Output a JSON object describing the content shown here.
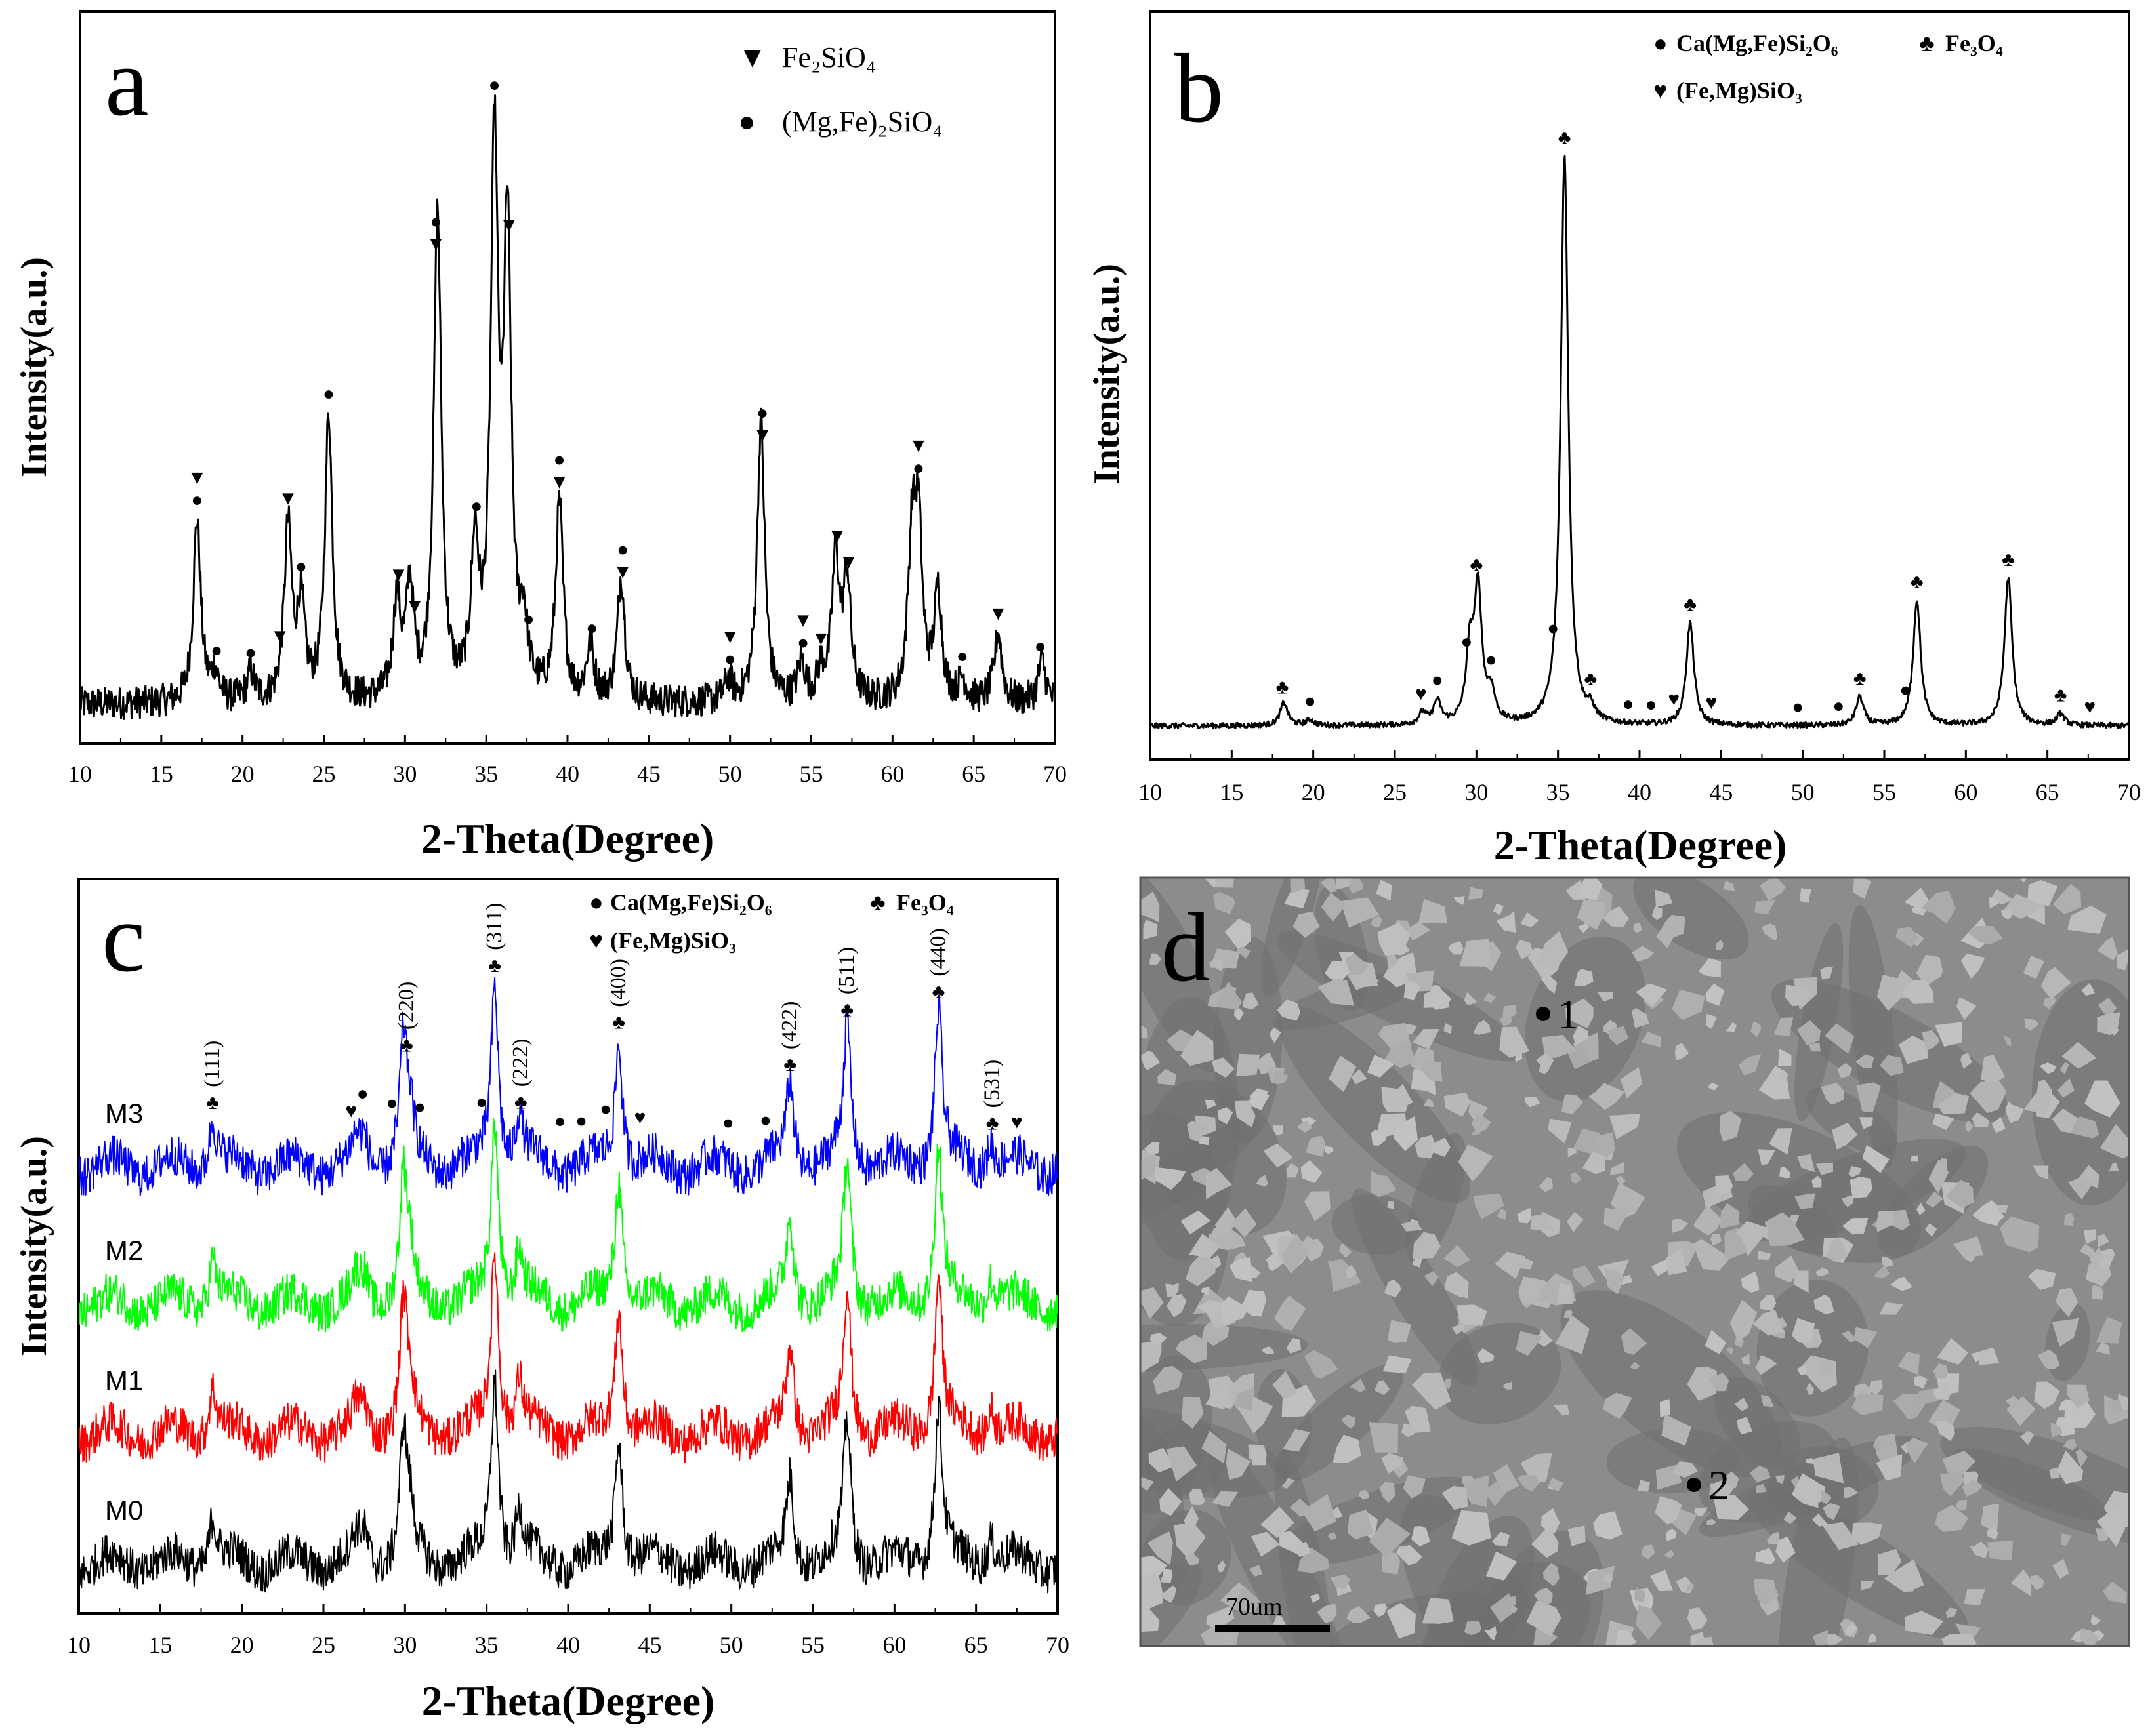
{
  "colors": {
    "black": "#000000",
    "blue": "#0000ff",
    "green": "#00ff00",
    "red": "#ff0000",
    "sem_bg": "#8c8c8c"
  },
  "chart_data": [
    {
      "panel": "a",
      "type": "line",
      "xlabel": "2-Theta(Degree)",
      "ylabel": "Intensity(a.u.)",
      "xlim": [
        10,
        70
      ],
      "xticks": [
        "10",
        "15",
        "20",
        "25",
        "30",
        "35",
        "40",
        "45",
        "50",
        "55",
        "60",
        "65",
        "70"
      ],
      "legend": [
        {
          "symbol": "▼",
          "formula": "Fe₂SiO₄"
        },
        {
          "symbol": "●",
          "formula": "(Mg,Fe)₂SiO₄"
        }
      ],
      "background": 0.06,
      "peaks": [
        [
          17.2,
          0.34
        ],
        [
          18.3,
          0.05
        ],
        [
          20.5,
          0.05
        ],
        [
          22.8,
          0.32
        ],
        [
          23.6,
          0.17
        ],
        [
          25.3,
          0.53
        ],
        [
          29.5,
          0.18
        ],
        [
          30.3,
          0.2
        ],
        [
          32.0,
          0.9
        ],
        [
          34.3,
          0.27
        ],
        [
          35.5,
          1.0
        ],
        [
          36.3,
          0.84
        ],
        [
          37.3,
          0.12
        ],
        [
          39.5,
          0.36
        ],
        [
          41.4,
          0.1
        ],
        [
          43.3,
          0.23
        ],
        [
          49.9,
          0.04
        ],
        [
          51.9,
          0.52
        ],
        [
          54.4,
          0.07
        ],
        [
          55.6,
          0.05
        ],
        [
          56.5,
          0.26
        ],
        [
          57.2,
          0.22
        ],
        [
          61.2,
          0.28
        ],
        [
          61.6,
          0.3
        ],
        [
          62.8,
          0.2
        ],
        [
          64.3,
          0.04
        ],
        [
          66.5,
          0.13
        ],
        [
          69.2,
          0.08
        ]
      ],
      "markers": [
        {
          "x": 17.2,
          "s": "▼●"
        },
        {
          "x": 18.4,
          "s": "●"
        },
        {
          "x": 20.5,
          "s": "●"
        },
        {
          "x": 22.3,
          "s": "▼"
        },
        {
          "x": 22.8,
          "s": "▼"
        },
        {
          "x": 23.6,
          "s": "●"
        },
        {
          "x": 25.3,
          "s": "●"
        },
        {
          "x": 29.6,
          "s": "▼"
        },
        {
          "x": 30.6,
          "s": "▼"
        },
        {
          "x": 31.9,
          "s": "●▼"
        },
        {
          "x": 34.4,
          "s": "●"
        },
        {
          "x": 35.5,
          "s": "●"
        },
        {
          "x": 36.4,
          "s": "▼"
        },
        {
          "x": 37.6,
          "s": "●"
        },
        {
          "x": 39.5,
          "s": "●▼"
        },
        {
          "x": 41.5,
          "s": "●"
        },
        {
          "x": 43.4,
          "s": "●▼"
        },
        {
          "x": 50.0,
          "s": "▼●"
        },
        {
          "x": 52.0,
          "s": "●▼"
        },
        {
          "x": 54.5,
          "s": "▼●"
        },
        {
          "x": 55.6,
          "s": "▼"
        },
        {
          "x": 56.6,
          "s": "▼"
        },
        {
          "x": 57.3,
          "s": "▼"
        },
        {
          "x": 61.6,
          "s": "▼●"
        },
        {
          "x": 64.3,
          "s": "●"
        },
        {
          "x": 66.5,
          "s": "▼"
        },
        {
          "x": 69.1,
          "s": "●"
        }
      ]
    },
    {
      "panel": "b",
      "type": "line",
      "xlabel": "2-Theta(Degree)",
      "ylabel": "Intensity(a.u.)",
      "xlim": [
        10,
        70
      ],
      "xticks": [
        "10",
        "15",
        "20",
        "25",
        "30",
        "35",
        "40",
        "45",
        "50",
        "55",
        "60",
        "65",
        "70"
      ],
      "legend": [
        {
          "symbol": "●",
          "formula": "Ca(Mg,Fe)Si₂O₆"
        },
        {
          "symbol": "♣",
          "formula": "Fe₃O₄"
        },
        {
          "symbol": "♥",
          "formula": "(Fe,Mg)SiO₃"
        }
      ],
      "background": 0.05,
      "peaks": [
        [
          18.2,
          0.04
        ],
        [
          19.8,
          0.01
        ],
        [
          26.7,
          0.02
        ],
        [
          27.6,
          0.04
        ],
        [
          29.6,
          0.12
        ],
        [
          30.1,
          0.23
        ],
        [
          30.9,
          0.05
        ],
        [
          35.4,
          1.0
        ],
        [
          37.0,
          0.02
        ],
        [
          43.1,
          0.18
        ],
        [
          53.5,
          0.05
        ],
        [
          57.0,
          0.22
        ],
        [
          62.6,
          0.26
        ],
        [
          65.8,
          0.02
        ]
      ],
      "markers": [
        {
          "x": 18.1,
          "s": "♣"
        },
        {
          "x": 19.8,
          "s": "●"
        },
        {
          "x": 26.6,
          "s": "♥"
        },
        {
          "x": 27.6,
          "s": "●"
        },
        {
          "x": 29.4,
          "s": "●"
        },
        {
          "x": 30.0,
          "s": "♣"
        },
        {
          "x": 30.9,
          "s": "●"
        },
        {
          "x": 34.7,
          "s": "●"
        },
        {
          "x": 35.4,
          "s": "♣"
        },
        {
          "x": 37.0,
          "s": "♣"
        },
        {
          "x": 39.3,
          "s": "●"
        },
        {
          "x": 40.7,
          "s": "●"
        },
        {
          "x": 42.1,
          "s": "♥"
        },
        {
          "x": 43.1,
          "s": "♣"
        },
        {
          "x": 44.4,
          "s": "♥"
        },
        {
          "x": 49.7,
          "s": "●"
        },
        {
          "x": 52.2,
          "s": "●"
        },
        {
          "x": 53.5,
          "s": "♣"
        },
        {
          "x": 56.3,
          "s": "●"
        },
        {
          "x": 57.0,
          "s": "♣"
        },
        {
          "x": 62.6,
          "s": "♣"
        },
        {
          "x": 65.8,
          "s": "♣"
        },
        {
          "x": 67.6,
          "s": "♥"
        }
      ]
    },
    {
      "panel": "c",
      "type": "line",
      "xlabel": "2-Theta(Degree)",
      "ylabel": "Intensity(a.u.)",
      "xlim": [
        10,
        70
      ],
      "xticks": [
        "10",
        "15",
        "20",
        "25",
        "30",
        "35",
        "40",
        "45",
        "50",
        "55",
        "60",
        "65",
        "70"
      ],
      "legend": [
        {
          "symbol": "●",
          "formula": "Ca(Mg,Fe)Si₂O₆"
        },
        {
          "symbol": "♣",
          "formula": "Fe₃O₄"
        },
        {
          "symbol": "♥",
          "formula": "(Fe,Mg)SiO₃"
        }
      ],
      "series": [
        {
          "name": "M3",
          "color": "#0000ff",
          "offset": 0.62
        },
        {
          "name": "M2",
          "color": "#00ff00",
          "offset": 0.43
        },
        {
          "name": "M1",
          "color": "#ff0000",
          "offset": 0.25
        },
        {
          "name": "M0",
          "color": "#000000",
          "offset": 0.07
        }
      ],
      "peaks": [
        [
          18.2,
          0.08
        ],
        [
          29.9,
          0.2
        ],
        [
          30.3,
          0.06
        ],
        [
          35.5,
          0.3
        ],
        [
          37.0,
          0.08
        ],
        [
          43.1,
          0.21
        ],
        [
          53.6,
          0.14
        ],
        [
          57.1,
          0.23
        ],
        [
          62.7,
          0.26
        ],
        [
          65.9,
          0.05
        ],
        [
          27.5,
          0.04
        ],
        [
          27.0,
          0.03
        ]
      ],
      "hkl": [
        {
          "x": 18.2,
          "label": "(111)"
        },
        {
          "x": 30.1,
          "label": "(220)"
        },
        {
          "x": 35.5,
          "label": "(311)"
        },
        {
          "x": 37.1,
          "label": "(222)"
        },
        {
          "x": 43.1,
          "label": "(400)"
        },
        {
          "x": 53.6,
          "label": "(422)"
        },
        {
          "x": 57.1,
          "label": "(511)"
        },
        {
          "x": 62.7,
          "label": "(440)"
        },
        {
          "x": 66.0,
          "label": "(531)"
        }
      ],
      "markers": [
        {
          "x": 26.7,
          "s": "♥"
        },
        {
          "x": 27.4,
          "s": "●"
        },
        {
          "x": 29.2,
          "s": "●"
        },
        {
          "x": 30.9,
          "s": "●"
        },
        {
          "x": 34.7,
          "s": "●"
        },
        {
          "x": 39.5,
          "s": "●"
        },
        {
          "x": 40.8,
          "s": "●"
        },
        {
          "x": 42.3,
          "s": "●"
        },
        {
          "x": 44.4,
          "s": "♥"
        },
        {
          "x": 49.8,
          "s": "●"
        },
        {
          "x": 52.1,
          "s": "●"
        },
        {
          "x": 67.5,
          "s": "♥"
        }
      ]
    }
  ],
  "panel_d": {
    "letter": "d",
    "type": "SEM micrograph",
    "points": [
      {
        "label": "1"
      },
      {
        "label": "2"
      }
    ],
    "scale_bar_label": "70um"
  }
}
